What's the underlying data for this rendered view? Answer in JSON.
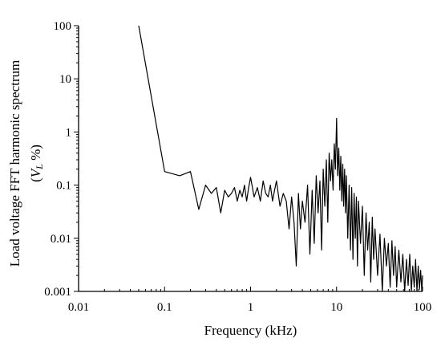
{
  "chart_data": {
    "type": "line",
    "title": "",
    "xlabel": "Frequency (kHz)",
    "ylabel_line1": "Load voltage FFT harmonic spectrum",
    "ylabel_line2_prefix": "(",
    "ylabel_line2_var": "V",
    "ylabel_line2_sub": "L",
    "ylabel_line2_suffix": " %)",
    "xscale": "log",
    "yscale": "log",
    "xlim": [
      0.01,
      100
    ],
    "ylim": [
      0.001,
      100
    ],
    "grid": false,
    "x_ticks": [
      0.01,
      0.1,
      1,
      10,
      100
    ],
    "x_tick_labels": [
      "0.01",
      "0.1",
      "1",
      "10",
      "100"
    ],
    "y_ticks": [
      0.001,
      0.01,
      0.1,
      1,
      10,
      100
    ],
    "y_tick_labels": [
      "0.001",
      "0.01",
      "0.1",
      "1",
      "10",
      "100"
    ],
    "series": [
      {
        "color": "#000000",
        "x": [
          0.05,
          0.1,
          0.15,
          0.2,
          0.25,
          0.3,
          0.35,
          0.4,
          0.45,
          0.5,
          0.55,
          0.6,
          0.65,
          0.7,
          0.75,
          0.8,
          0.85,
          0.9,
          0.95,
          1.0,
          1.1,
          1.2,
          1.3,
          1.4,
          1.5,
          1.6,
          1.7,
          1.8,
          1.9,
          2.0,
          2.2,
          2.4,
          2.6,
          2.8,
          3.0,
          3.2,
          3.4,
          3.6,
          3.8,
          4.0,
          4.3,
          4.6,
          4.9,
          5.2,
          5.5,
          5.8,
          6.1,
          6.4,
          6.7,
          7.0,
          7.3,
          7.6,
          7.9,
          8.2,
          8.5,
          8.8,
          9.1,
          9.4,
          9.7,
          10.0,
          10.3,
          10.6,
          10.9,
          11.2,
          11.5,
          11.8,
          12.1,
          12.4,
          12.7,
          13.0,
          13.5,
          14.0,
          14.5,
          15.0,
          15.5,
          16.0,
          16.5,
          17.0,
          17.5,
          18.0,
          19.0,
          20.0,
          21.0,
          22.0,
          23.0,
          24.0,
          25.0,
          26.0,
          27.0,
          28.0,
          30.0,
          32.0,
          34.0,
          36.0,
          38.0,
          40.0,
          42.0,
          44.0,
          46.0,
          48.0,
          50.0,
          53.0,
          56.0,
          59.0,
          62.0,
          65.0,
          68.0,
          71.0,
          74.0,
          77.0,
          80.0,
          83.0,
          86.0,
          89.0,
          92.0,
          95.0,
          98.0,
          100.0
        ],
        "y": [
          100,
          0.18,
          0.15,
          0.18,
          0.035,
          0.1,
          0.07,
          0.09,
          0.03,
          0.08,
          0.06,
          0.07,
          0.09,
          0.05,
          0.08,
          0.06,
          0.1,
          0.05,
          0.09,
          0.14,
          0.06,
          0.09,
          0.05,
          0.12,
          0.07,
          0.06,
          0.1,
          0.05,
          0.08,
          0.12,
          0.04,
          0.07,
          0.05,
          0.015,
          0.06,
          0.02,
          0.003,
          0.07,
          0.015,
          0.05,
          0.02,
          0.1,
          0.005,
          0.08,
          0.008,
          0.15,
          0.03,
          0.12,
          0.006,
          0.2,
          0.04,
          0.3,
          0.02,
          0.4,
          0.12,
          0.3,
          0.08,
          0.6,
          0.2,
          1.8,
          0.15,
          0.5,
          0.08,
          0.35,
          0.05,
          0.25,
          0.04,
          0.2,
          0.03,
          0.15,
          0.01,
          0.1,
          0.006,
          0.09,
          0.004,
          0.07,
          0.01,
          0.06,
          0.003,
          0.05,
          0.008,
          0.04,
          0.002,
          0.03,
          0.006,
          0.02,
          0.0015,
          0.025,
          0.004,
          0.015,
          0.002,
          0.012,
          0.001,
          0.01,
          0.003,
          0.008,
          0.0012,
          0.009,
          0.002,
          0.007,
          0.0012,
          0.006,
          0.0015,
          0.005,
          0.001,
          0.004,
          0.0013,
          0.005,
          0.001,
          0.003,
          0.0012,
          0.004,
          0.001,
          0.003,
          0.0011,
          0.0025,
          0.001,
          0.002
        ]
      }
    ]
  }
}
